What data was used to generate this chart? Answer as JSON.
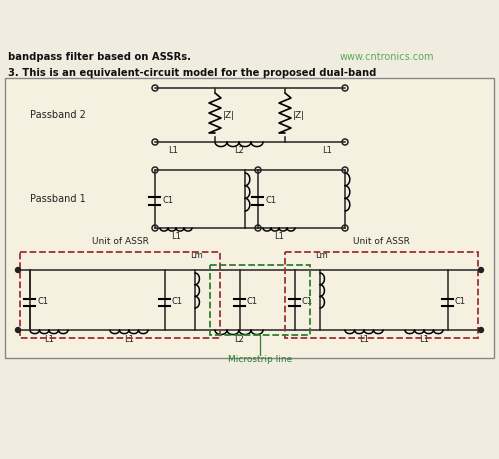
{
  "bg_color": "#f5f0e0",
  "panel_bg": "#f5f0e0",
  "outer_bg": "#f0ece0",
  "dark_red": "#993333",
  "dark_green": "#2E7D32",
  "line_color": "#222222",
  "caption_color": "#111111",
  "web_color": "#5aaa55",
  "website": "www.cntronics.com",
  "caption1": "3. This is an equivalent-circuit model for the proposed dual-band",
  "caption2": "bandpass filter based on ASSRs."
}
